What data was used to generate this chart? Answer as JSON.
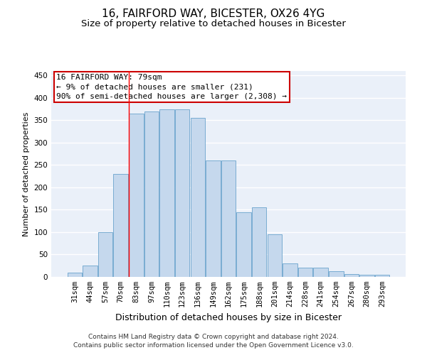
{
  "title1": "16, FAIRFORD WAY, BICESTER, OX26 4YG",
  "title2": "Size of property relative to detached houses in Bicester",
  "xlabel": "Distribution of detached houses by size in Bicester",
  "ylabel": "Number of detached properties",
  "categories": [
    "31sqm",
    "44sqm",
    "57sqm",
    "70sqm",
    "83sqm",
    "97sqm",
    "110sqm",
    "123sqm",
    "136sqm",
    "149sqm",
    "162sqm",
    "175sqm",
    "188sqm",
    "201sqm",
    "214sqm",
    "228sqm",
    "241sqm",
    "254sqm",
    "267sqm",
    "280sqm",
    "293sqm"
  ],
  "values": [
    10,
    25,
    100,
    230,
    365,
    370,
    375,
    375,
    355,
    260,
    260,
    145,
    155,
    95,
    30,
    20,
    20,
    13,
    7,
    4,
    4
  ],
  "bar_color": "#c5d8ed",
  "bar_edge_color": "#6aa3cc",
  "background_color": "#eaf0f9",
  "grid_color": "#ffffff",
  "annotation_box_text": "16 FAIRFORD WAY: 79sqm\n← 9% of detached houses are smaller (231)\n90% of semi-detached houses are larger (2,308) →",
  "annotation_box_color": "#ffffff",
  "annotation_box_edge_color": "#cc0000",
  "red_line_x": 3.5,
  "ylim": [
    0,
    460
  ],
  "yticks": [
    0,
    50,
    100,
    150,
    200,
    250,
    300,
    350,
    400,
    450
  ],
  "footnote1": "Contains HM Land Registry data © Crown copyright and database right 2024.",
  "footnote2": "Contains public sector information licensed under the Open Government Licence v3.0.",
  "title1_fontsize": 11,
  "title2_fontsize": 9.5,
  "xlabel_fontsize": 9,
  "ylabel_fontsize": 8,
  "tick_fontsize": 7.5,
  "annotation_fontsize": 8,
  "footnote_fontsize": 6.5
}
